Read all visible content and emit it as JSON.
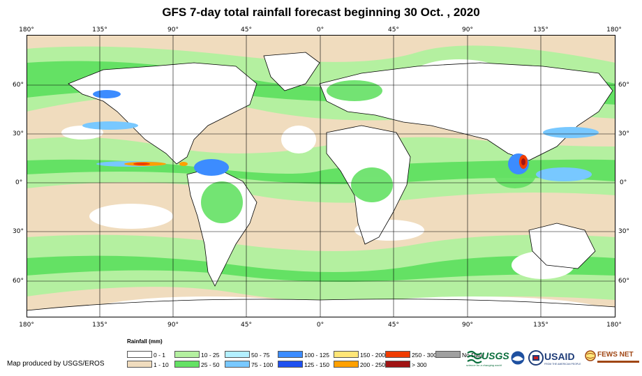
{
  "title": "GFS 7-day total rainfall forecast beginning 30 Oct. , 2020",
  "longitude_labels": [
    "180°",
    "135°",
    "90°",
    "45°",
    "0°",
    "45°",
    "90°",
    "135°",
    "180°"
  ],
  "latitude_labels": [
    "60°",
    "30°",
    "0°",
    "30°",
    "60°"
  ],
  "legend": {
    "title": "Rainfall (mm)",
    "items": [
      {
        "label": "0 - 1",
        "color": "#ffffff"
      },
      {
        "label": "1 - 10",
        "color": "#f0dcbe"
      },
      {
        "label": "10 - 25",
        "color": "#b4f0a0"
      },
      {
        "label": "25 - 50",
        "color": "#64e164"
      },
      {
        "label": "50 - 75",
        "color": "#b4f0ff"
      },
      {
        "label": "75 - 100",
        "color": "#78c8ff"
      },
      {
        "label": "100 - 125",
        "color": "#3c8cff"
      },
      {
        "label": "125 - 150",
        "color": "#1e50f0"
      },
      {
        "label": "150 - 200",
        "color": "#ffe678"
      },
      {
        "label": "200 - 250",
        "color": "#ffa000"
      },
      {
        "label": "250 - 300",
        "color": "#f03c00"
      },
      {
        "label": "> 300",
        "color": "#a01414"
      },
      {
        "label": "No Data",
        "color": "#a0a0a0"
      }
    ]
  },
  "credit": "Map produced by USGS/EROS",
  "logos": {
    "usgs": "USGS",
    "usgs_tagline": "science for a changing world",
    "noaa": "NOAA",
    "usaid": "USAID",
    "usaid_tagline": "FROM THE AMERICAN PEOPLE",
    "fewsnet": "FEWS NET"
  }
}
